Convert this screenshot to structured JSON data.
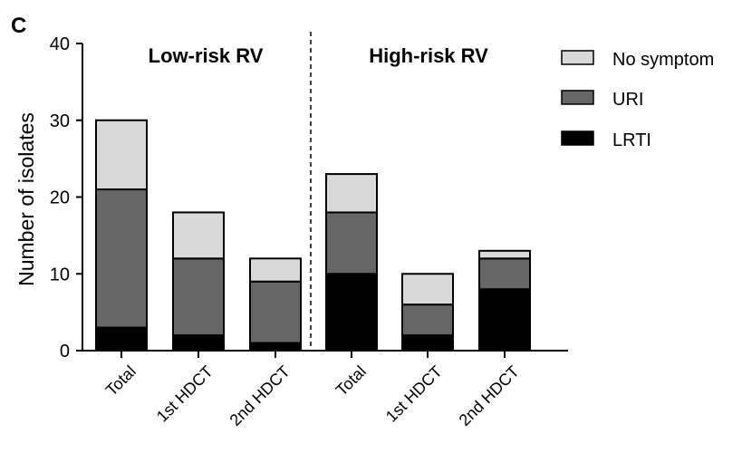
{
  "panel_label": "C",
  "chart_data": {
    "type": "bar",
    "stacked": true,
    "categories": [
      "Total",
      "1st HDCT",
      "2nd HDCT",
      "Total",
      "1st HDCT",
      "2nd HDCT"
    ],
    "groups": [
      {
        "title": "Low-risk RV",
        "category_indices": [
          0,
          1,
          2
        ]
      },
      {
        "title": "High-risk RV",
        "category_indices": [
          3,
          4,
          5
        ]
      }
    ],
    "series": [
      {
        "name": "LRTI",
        "values": [
          3,
          2,
          1,
          10,
          2,
          8
        ],
        "color": "#000000"
      },
      {
        "name": "URI",
        "values": [
          18,
          10,
          8,
          8,
          4,
          4
        ],
        "color": "#666666"
      },
      {
        "name": "No symptom",
        "values": [
          9,
          6,
          3,
          5,
          4,
          1
        ],
        "color": "#d9d9d9"
      }
    ],
    "legend_order": [
      "No symptom",
      "URI",
      "LRTI"
    ],
    "ylabel": "Number of isolates",
    "xlabel": "",
    "ylim": [
      0,
      40
    ],
    "yticks": [
      0,
      10,
      20,
      30,
      40
    ],
    "grid": false,
    "legend_position": "right",
    "group_divider": "dashed"
  }
}
